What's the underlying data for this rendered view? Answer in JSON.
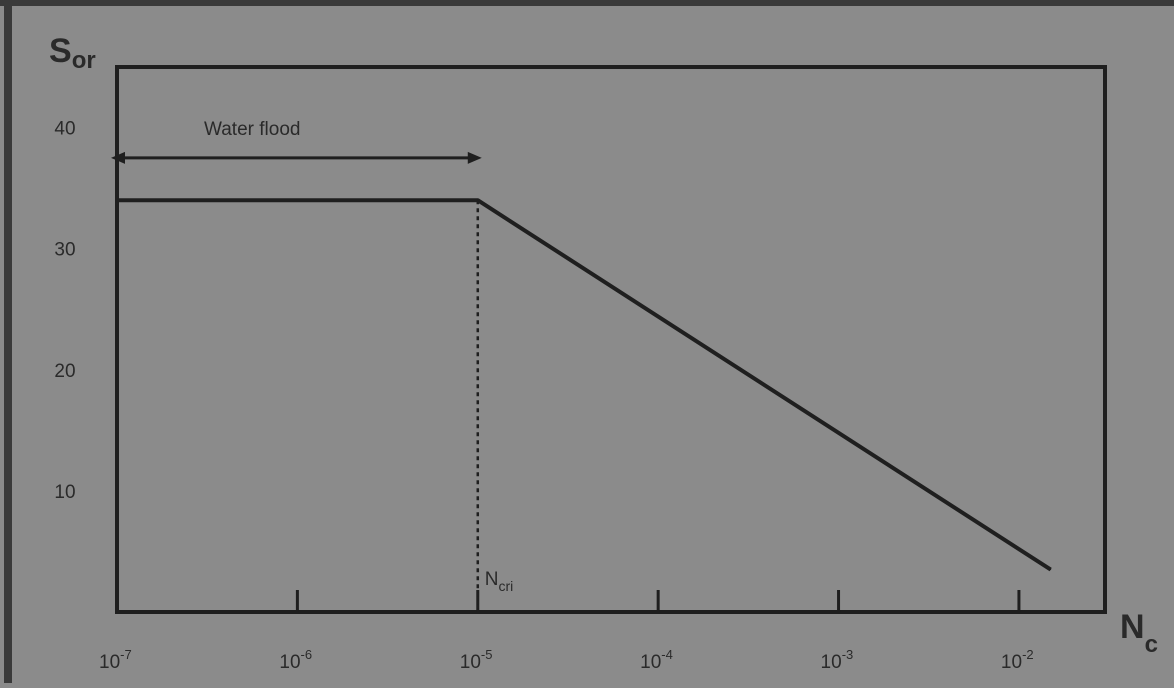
{
  "chart_data": {
    "type": "line",
    "xscale": "log",
    "xlim": [
      1e-07,
      0.03
    ],
    "ylim": [
      0,
      45
    ],
    "x_ticks": [
      1e-07,
      1e-06,
      1e-05,
      0.0001,
      0.001,
      0.01
    ],
    "x_tick_labels": [
      {
        "base": "10",
        "exp": "-7"
      },
      {
        "base": "10",
        "exp": "-6"
      },
      {
        "base": "10",
        "exp": "-5"
      },
      {
        "base": "10",
        "exp": "-4"
      },
      {
        "base": "10",
        "exp": "-3"
      },
      {
        "base": "10",
        "exp": "-2"
      }
    ],
    "y_ticks": [
      10,
      20,
      30,
      40
    ],
    "y_tick_labels": [
      "10",
      "20",
      "30",
      "40"
    ],
    "ylabel": {
      "main": "S",
      "sub": "or"
    },
    "xlabel": {
      "main": "N",
      "sub": "c"
    },
    "grid": false,
    "series": [
      {
        "x": [
          1e-07,
          1e-05,
          0.015
        ],
        "y": [
          34,
          34,
          3.5
        ]
      }
    ],
    "critical_line": {
      "x": 1e-05,
      "label_main": "N",
      "label_sub": "cri"
    },
    "waterflood_arrow": {
      "x_start": 1e-07,
      "x_end": 1e-05,
      "y": 37.5,
      "label": "Water flood"
    }
  },
  "colors": {
    "background": "#8b8b8b",
    "ink": "#1f1f1f"
  }
}
